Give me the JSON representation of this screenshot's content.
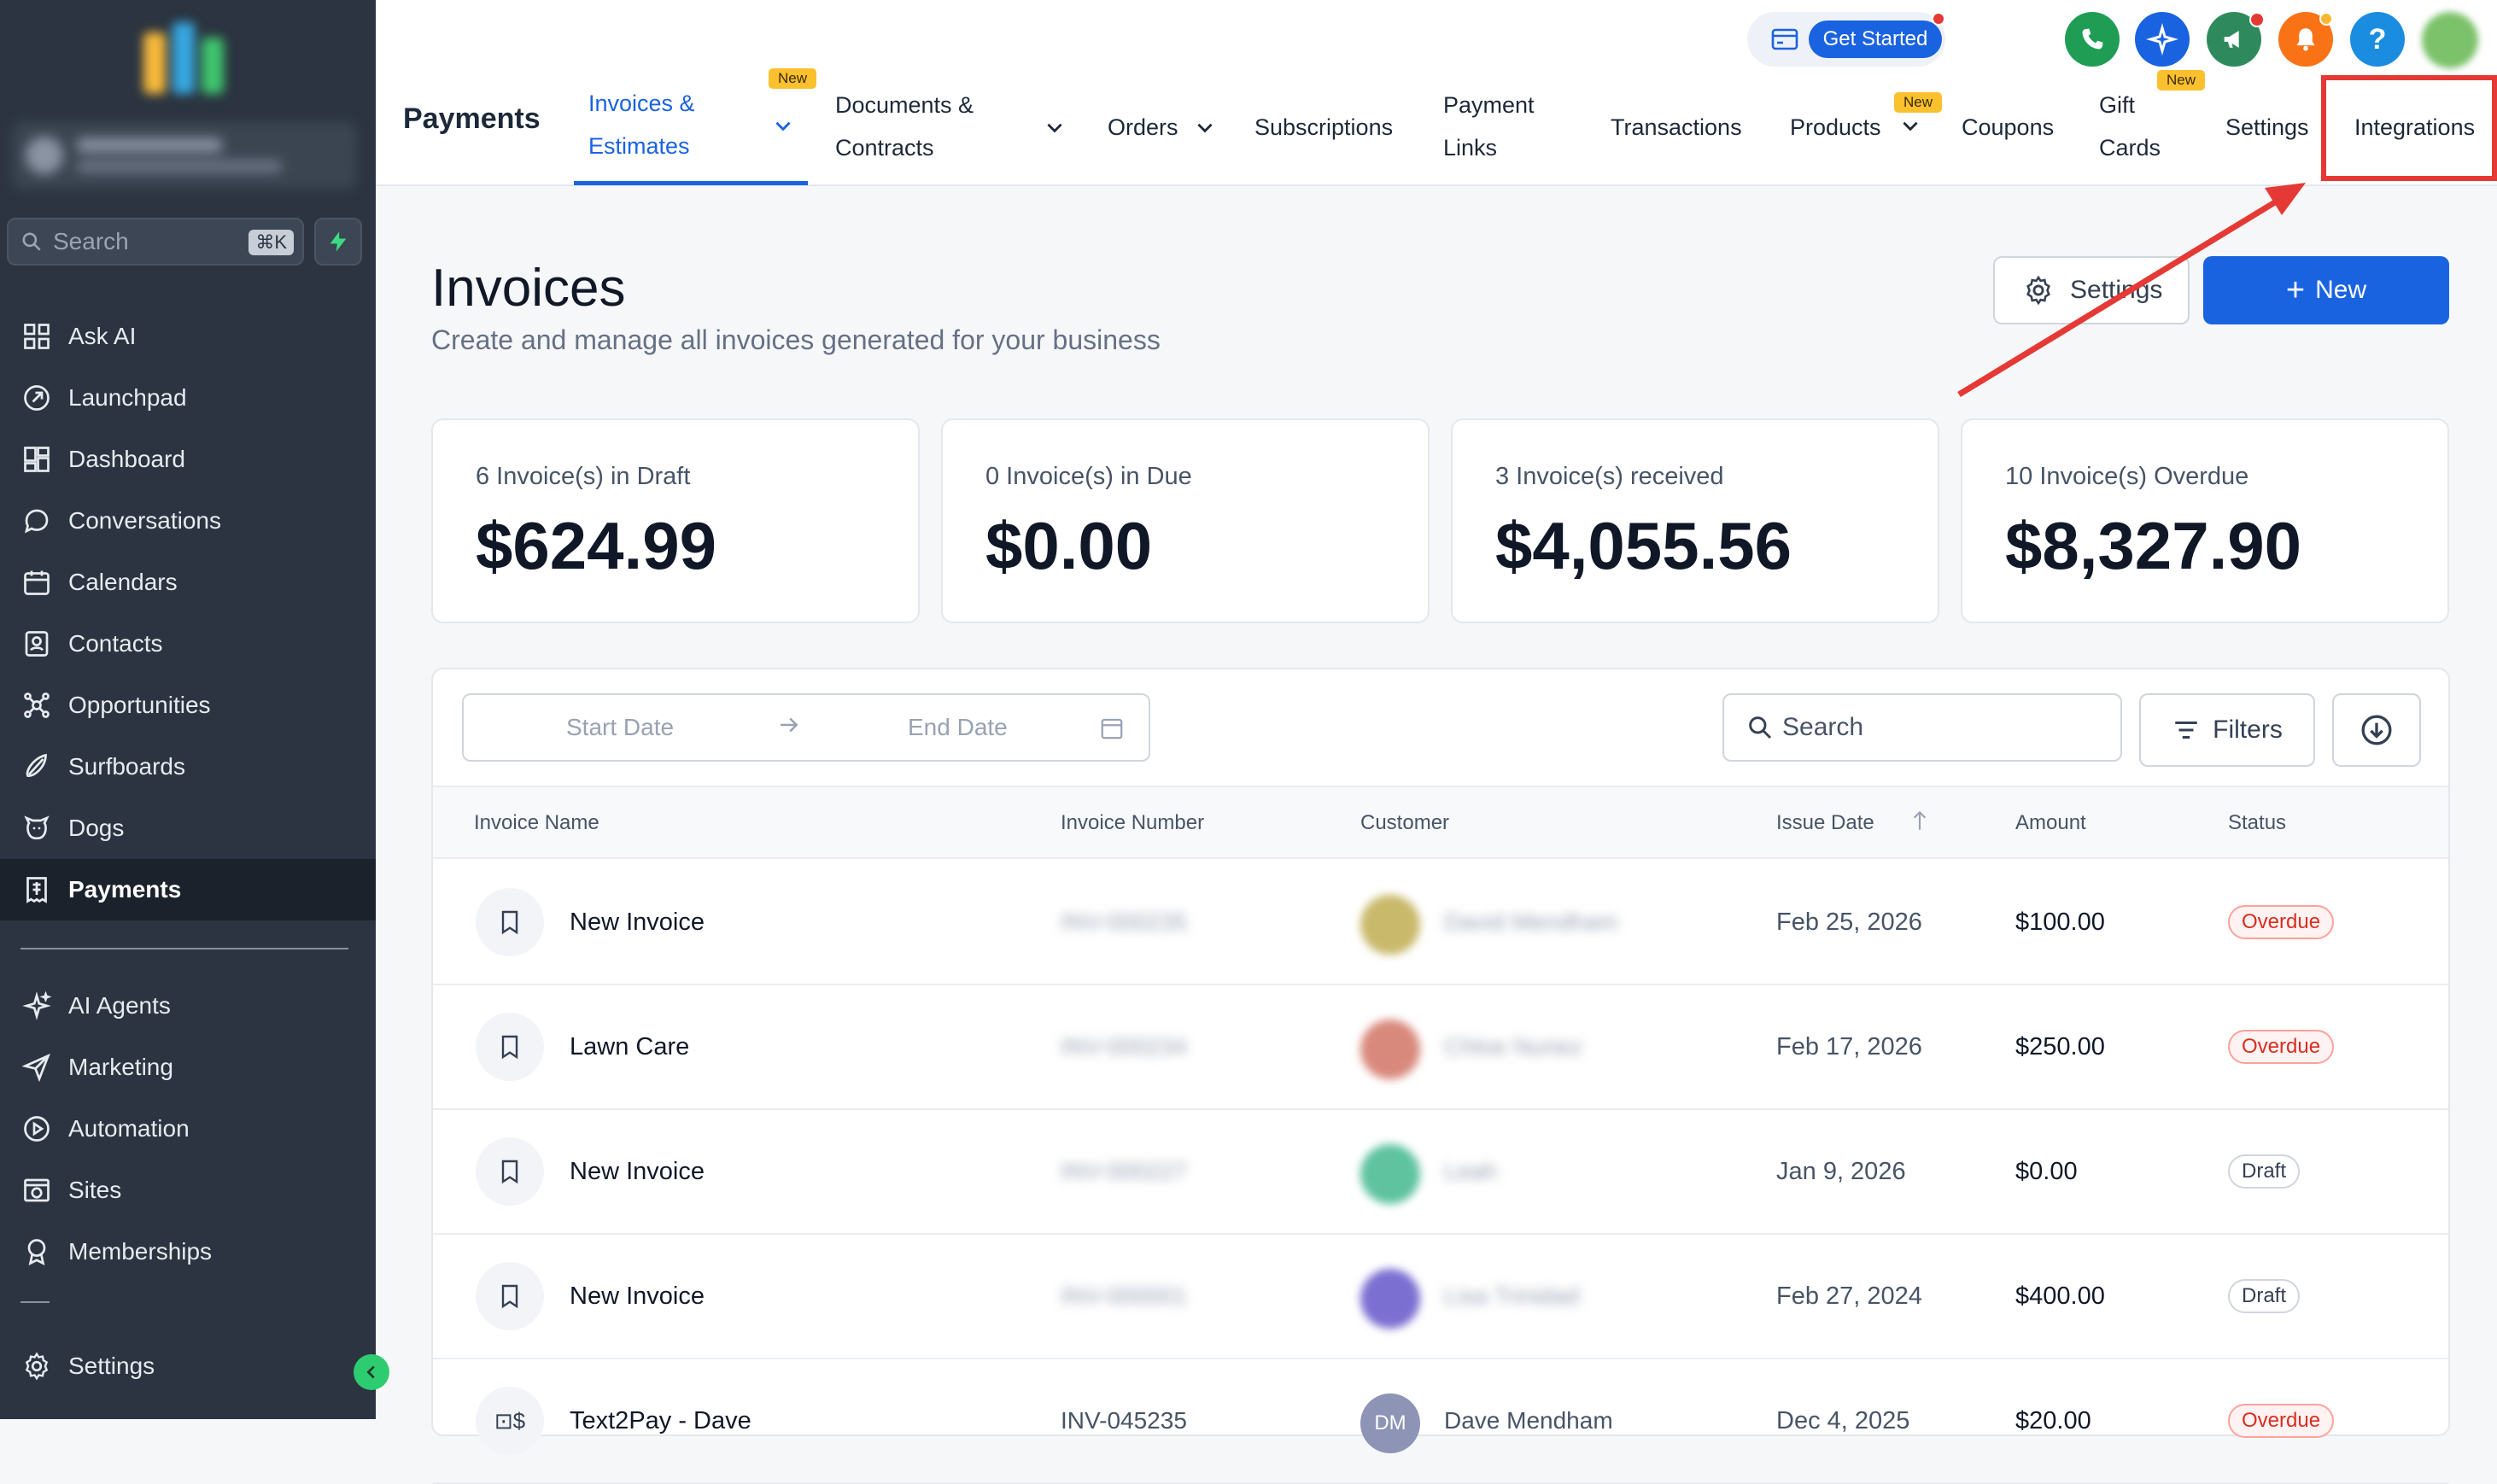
{
  "sidebar": {
    "search_placeholder": "Search",
    "search_shortcut": "⌘K",
    "items": [
      {
        "label": "Ask AI",
        "icon": "grid-icon"
      },
      {
        "label": "Launchpad",
        "icon": "rocket-icon"
      },
      {
        "label": "Dashboard",
        "icon": "dashboard-icon"
      },
      {
        "label": "Conversations",
        "icon": "chat-bubble-icon"
      },
      {
        "label": "Calendars",
        "icon": "calendar-icon"
      },
      {
        "label": "Contacts",
        "icon": "contacts-icon"
      },
      {
        "label": "Opportunities",
        "icon": "opportunities-icon"
      },
      {
        "label": "Surfboards",
        "icon": "surfboard-icon"
      },
      {
        "label": "Dogs",
        "icon": "dog-icon"
      },
      {
        "label": "Payments",
        "icon": "receipt-icon",
        "active": true
      }
    ],
    "items2": [
      {
        "label": "AI Agents",
        "icon": "sparkle-icon"
      },
      {
        "label": "Marketing",
        "icon": "send-icon"
      },
      {
        "label": "Automation",
        "icon": "automation-icon"
      },
      {
        "label": "Sites",
        "icon": "sites-icon"
      },
      {
        "label": "Memberships",
        "icon": "award-icon"
      }
    ],
    "settings_label": "Settings"
  },
  "topbar": {
    "get_started": "Get Started",
    "help": "?",
    "page_title": "Payments",
    "tabs": [
      {
        "line1": "Invoices &",
        "line2": "Estimates",
        "active": true,
        "badge": "New",
        "dropdown": true
      },
      {
        "line1": "Documents &",
        "line2": "Contracts",
        "dropdown": true
      },
      {
        "line1": "Orders",
        "dropdown": true
      },
      {
        "line1": "Subscriptions"
      },
      {
        "line1": "Payment",
        "line2": "Links"
      },
      {
        "line1": "Transactions"
      },
      {
        "line1": "Products",
        "badge": "New",
        "dropdown": true
      },
      {
        "line1": "Coupons"
      },
      {
        "line1": "Gift",
        "line2": "Cards",
        "badge": "New"
      },
      {
        "line1": "Settings"
      },
      {
        "line1": "Integrations"
      }
    ]
  },
  "main": {
    "title": "Invoices",
    "subtitle": "Create and manage all invoices generated for your business",
    "settings_button": "Settings",
    "new_button": "New",
    "stats": [
      {
        "label": "6 Invoice(s) in Draft",
        "value": "$624.99"
      },
      {
        "label": "0 Invoice(s) in Due",
        "value": "$0.00"
      },
      {
        "label": "3 Invoice(s) received",
        "value": "$4,055.56"
      },
      {
        "label": "10 Invoice(s) Overdue",
        "value": "$8,327.90"
      }
    ],
    "start_date_placeholder": "Start Date",
    "end_date_placeholder": "End Date",
    "search_placeholder": "Search",
    "filters_label": "Filters",
    "columns": [
      "Invoice Name",
      "Invoice Number",
      "Customer",
      "Issue Date",
      "Amount",
      "Status"
    ],
    "rows": [
      {
        "name": "New Invoice",
        "number": "INV-000235",
        "avatar_color": "#c9b96a",
        "customer": "David Mendham",
        "date": "Feb 25, 2026",
        "amount": "$100.00",
        "status": "Overdue"
      },
      {
        "name": "Lawn Care",
        "number": "INV-000234",
        "avatar_color": "#d9897c",
        "customer": "Chloe Nunez",
        "date": "Feb 17, 2026",
        "amount": "$250.00",
        "status": "Overdue"
      },
      {
        "name": "New Invoice",
        "number": "INV-000227",
        "avatar_color": "#5fc3a0",
        "customer": "Leah",
        "date": "Jan 9, 2026",
        "amount": "$0.00",
        "status": "Draft"
      },
      {
        "name": "New Invoice",
        "number": "INV-000001",
        "avatar_color": "#7b6fd1",
        "customer": "Lisa Trinidad",
        "date": "Feb 27, 2024",
        "amount": "$400.00",
        "status": "Draft"
      },
      {
        "name": "Text2Pay - Dave",
        "number": "INV-045235",
        "avatar_color": "#8d94b5",
        "avatar_initials": "DM",
        "customer": "Dave Mendham",
        "date": "Dec 4, 2025",
        "amount": "$20.00",
        "status": "Overdue"
      }
    ]
  },
  "colors": {
    "accent": "#1a63e0",
    "sidebar_bg": "#2b3440",
    "annotation_red": "#e53935",
    "overdue": "#d92d20",
    "badge_yellow": "#fbc02d"
  }
}
